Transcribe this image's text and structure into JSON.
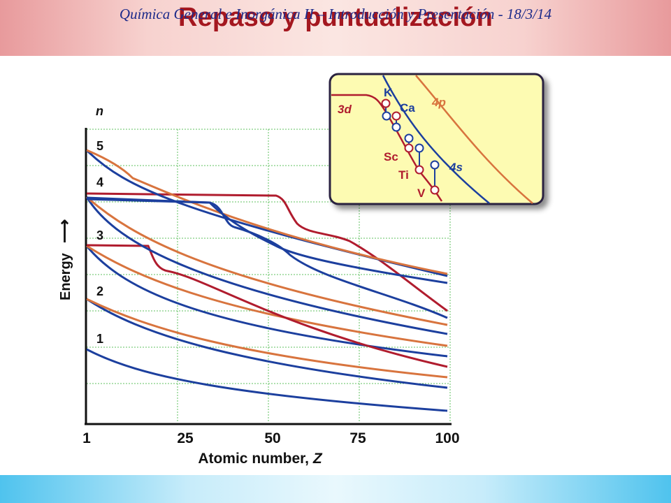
{
  "slide": {
    "title": "Repaso y puntualización",
    "footer": "Química General e Inorgánica II – Introducción y Presentación - 18/3/14"
  },
  "diagram": {
    "axis": {
      "y_label": "Energy",
      "y_arrow": "⟶",
      "x_label": "Atomic number, ",
      "x_label_var": "Z",
      "x_ticks": [
        "1",
        "25",
        "50",
        "75",
        "100"
      ],
      "n_header": "n",
      "n_levels": [
        "5",
        "4",
        "3",
        "2",
        "1"
      ]
    },
    "inset": {
      "labels": {
        "k": "K",
        "ca": "Ca",
        "sc": "Sc",
        "ti": "Ti",
        "v": "V",
        "d3": "3d",
        "p4": "4p",
        "s4": "4s"
      }
    },
    "colors": {
      "s_orbital": "#1c3f9e",
      "p_orbital": "#d8743e",
      "d_orbital": "#b01c2e",
      "inset_bg": "#fdfbb2",
      "grid": "#5fc05f"
    }
  }
}
